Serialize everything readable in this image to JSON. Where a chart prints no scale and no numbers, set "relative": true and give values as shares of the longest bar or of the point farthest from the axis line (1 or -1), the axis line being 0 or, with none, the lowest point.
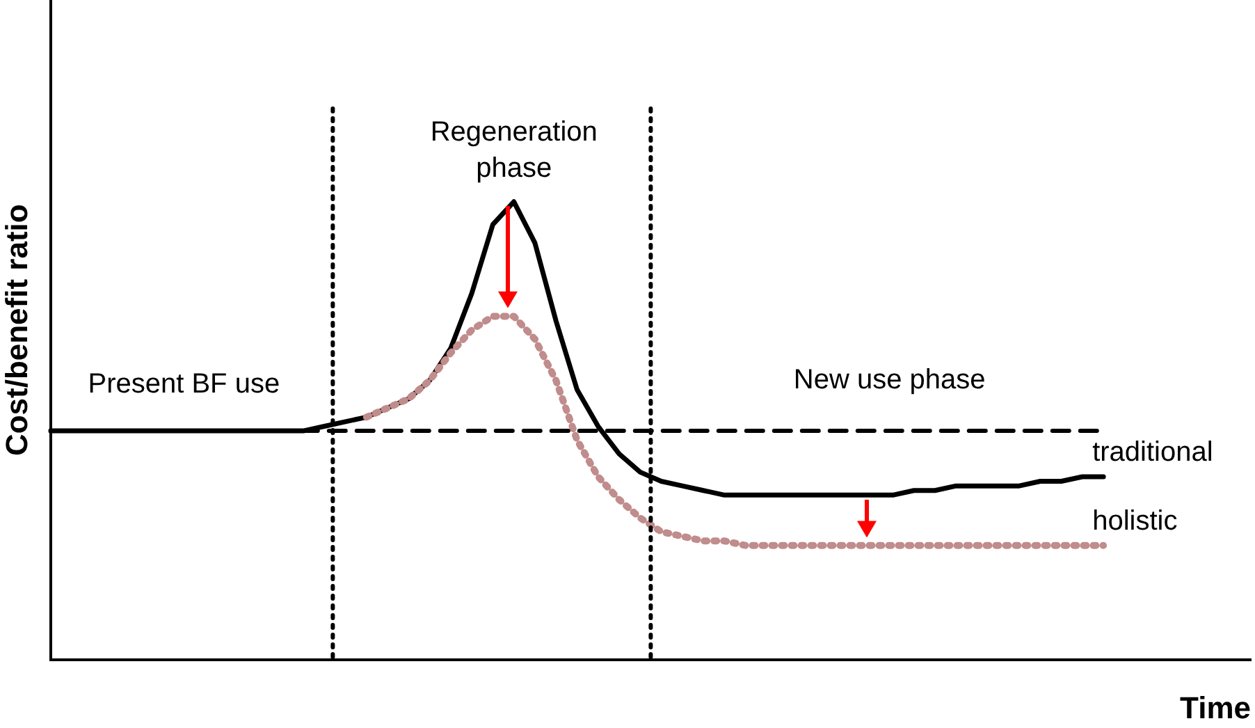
{
  "chart_data": {
    "type": "line",
    "relative": true,
    "xlabel": "Time",
    "ylabel": "Cost/benefit ratio",
    "grid": false,
    "legend": false,
    "categories": [
      null,
      null,
      null,
      null,
      null,
      null,
      null,
      null,
      null,
      null,
      null,
      null,
      null,
      null,
      null,
      null,
      null,
      null,
      null,
      null,
      null,
      null,
      null,
      null,
      null,
      null,
      null,
      null,
      null,
      null,
      null,
      null,
      null,
      null,
      null,
      null,
      null,
      null,
      null,
      null,
      null,
      null,
      null,
      null,
      null,
      null,
      null,
      null,
      null,
      null,
      null,
      null,
      null,
      null,
      null,
      null,
      null,
      null
    ],
    "series": [
      {
        "name": null,
        "color": "#000000",
        "line_style": "dashed",
        "values": [
          0.5,
          0.5,
          0.5,
          0.5,
          0.5,
          0.5,
          0.5,
          0.5,
          0.5,
          0.5,
          0.5,
          0.5,
          0.5,
          0.5,
          0.5,
          0.5,
          0.5,
          0.5,
          0.5,
          0.5,
          0.5,
          0.5,
          0.5,
          0.5,
          0.5,
          0.5,
          0.5,
          0.5,
          0.5,
          0.5,
          0.5,
          0.5,
          0.5,
          0.5,
          0.5,
          0.5,
          0.5,
          0.5,
          0.5,
          0.5,
          0.5,
          0.5,
          0.5,
          0.5,
          0.5,
          0.5,
          0.5,
          0.5,
          0.5,
          0.5,
          0.5,
          null,
          null,
          null,
          null,
          null,
          null,
          null
        ]
      },
      {
        "name": "holistic",
        "color": "#c08c8c",
        "line_style": "dotted",
        "values": [
          null,
          null,
          null,
          null,
          null,
          null,
          null,
          null,
          null,
          null,
          null,
          null,
          null,
          null,
          null,
          0.53,
          0.55,
          0.57,
          0.61,
          0.67,
          0.72,
          0.75,
          0.75,
          0.7,
          0.61,
          0.48,
          0.4,
          0.35,
          0.31,
          0.28,
          0.27,
          0.26,
          0.26,
          0.25,
          0.25,
          0.25,
          0.25,
          0.25,
          0.25,
          0.25,
          0.25,
          0.25,
          0.25,
          0.25,
          0.25,
          0.25,
          0.25,
          0.25,
          0.25,
          0.25,
          0.25,
          null,
          null,
          null,
          null,
          null,
          null,
          null
        ]
      },
      {
        "name": "traditional",
        "color": "#000000",
        "line_style": "solid",
        "values": [
          0.5,
          0.5,
          0.5,
          0.5,
          0.5,
          0.5,
          0.5,
          0.5,
          0.5,
          0.5,
          0.5,
          0.5,
          0.5,
          0.51,
          0.52,
          0.53,
          0.55,
          0.57,
          0.61,
          0.68,
          0.8,
          0.95,
          1,
          0.91,
          0.74,
          0.59,
          0.51,
          0.45,
          0.41,
          0.39,
          0.38,
          0.37,
          0.36,
          0.36,
          0.36,
          0.36,
          0.36,
          0.36,
          0.36,
          0.36,
          0.36,
          0.37,
          0.37,
          0.38,
          0.38,
          0.38,
          0.38,
          0.39,
          0.39,
          0.4,
          0.4,
          null,
          null,
          null,
          null,
          null,
          null,
          null
        ]
      }
    ],
    "annotations": [
      "Present BF use",
      "Regeneration phase",
      "New use phase"
    ]
  }
}
